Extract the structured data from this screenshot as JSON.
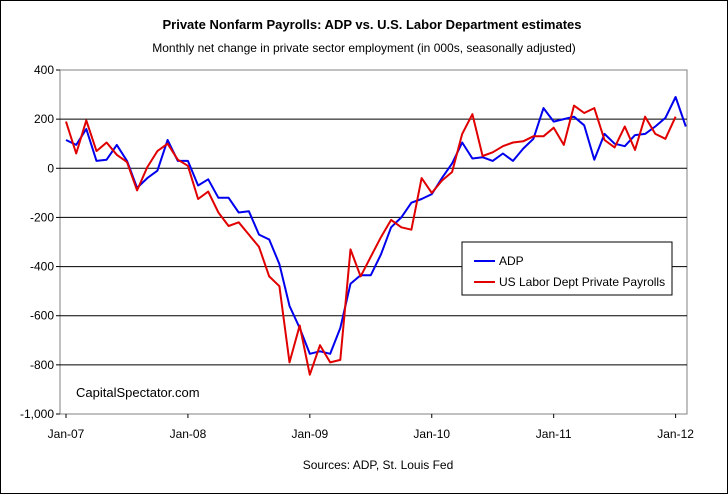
{
  "chart_data": {
    "type": "line",
    "title": "Private Nonfarm Payrolls: ADP vs. U.S. Labor Department estimates",
    "subtitle": "Monthly net change in private sector employment (in 000s, seasonally adjusted)",
    "source": "Sources: ADP, St. Louis Fed",
    "watermark": "CapitalSpectator.com",
    "x_start": "Jan-07",
    "x_tick_labels": [
      "Jan-07",
      "Jan-08",
      "Jan-09",
      "Jan-10",
      "Jan-11",
      "Jan-12"
    ],
    "y_tick_labels": [
      "400",
      "200",
      "0",
      "-200",
      "-400",
      "-600",
      "-800",
      "-1,000"
    ],
    "ylim": [
      -1000,
      400
    ],
    "grid": "horizontal",
    "legend_position": "middle-right",
    "series": [
      {
        "name": "ADP",
        "color": "#0000ee",
        "values": [
          115,
          95,
          160,
          30,
          35,
          95,
          30,
          -80,
          -40,
          -10,
          115,
          30,
          30,
          -70,
          -45,
          -120,
          -120,
          -180,
          -175,
          -270,
          -290,
          -390,
          -560,
          -650,
          -755,
          -745,
          -755,
          -650,
          -470,
          -435,
          -435,
          -350,
          -240,
          -200,
          -140,
          -125,
          -105,
          -40,
          20,
          105,
          40,
          45,
          30,
          60,
          30,
          80,
          120,
          245,
          190,
          200,
          210,
          175,
          35,
          140,
          100,
          90,
          135,
          140,
          170,
          205,
          290,
          170
        ]
      },
      {
        "name": "US Labor Dept Private Payrolls",
        "color": "#e00000",
        "values": [
          190,
          60,
          195,
          70,
          105,
          55,
          25,
          -90,
          5,
          70,
          100,
          35,
          10,
          -125,
          -95,
          -180,
          -235,
          -220,
          -270,
          -320,
          -440,
          -480,
          -790,
          -640,
          -840,
          -720,
          -790,
          -780,
          -330,
          -440,
          -360,
          -280,
          -210,
          -240,
          -250,
          -40,
          -100,
          -50,
          -15,
          140,
          220,
          50,
          65,
          90,
          105,
          110,
          130,
          130,
          165,
          95,
          255,
          225,
          245,
          115,
          85,
          170,
          75,
          210,
          140,
          120,
          210
        ]
      }
    ]
  }
}
